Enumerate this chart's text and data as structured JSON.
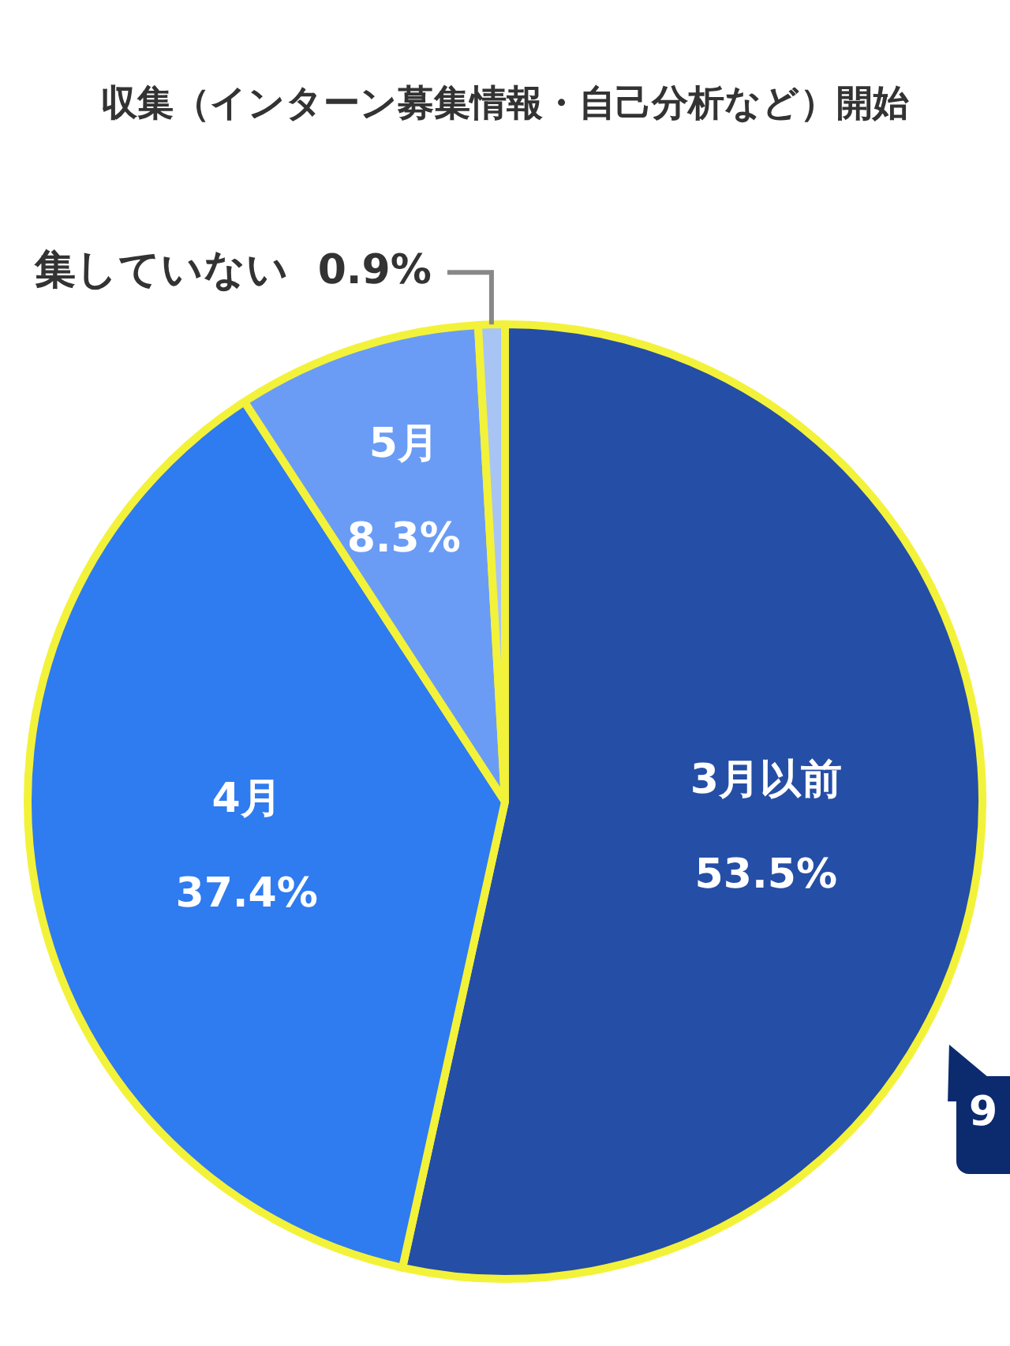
{
  "chart_data": {
    "type": "pie",
    "title": "収集（インターン募集情報・自己分析など）開始",
    "categories": [
      "3月以前",
      "4月",
      "5月",
      "集していない"
    ],
    "values": [
      53.5,
      37.4,
      8.3,
      0.9
    ],
    "value_labels": [
      "53.5%",
      "37.4%",
      "8.3%",
      "0.9%"
    ],
    "colors": [
      "#254ea6",
      "#2f7bf0",
      "#6a9cf5",
      "#a8c4f5"
    ],
    "annotations": [
      "9"
    ],
    "legend": false
  }
}
